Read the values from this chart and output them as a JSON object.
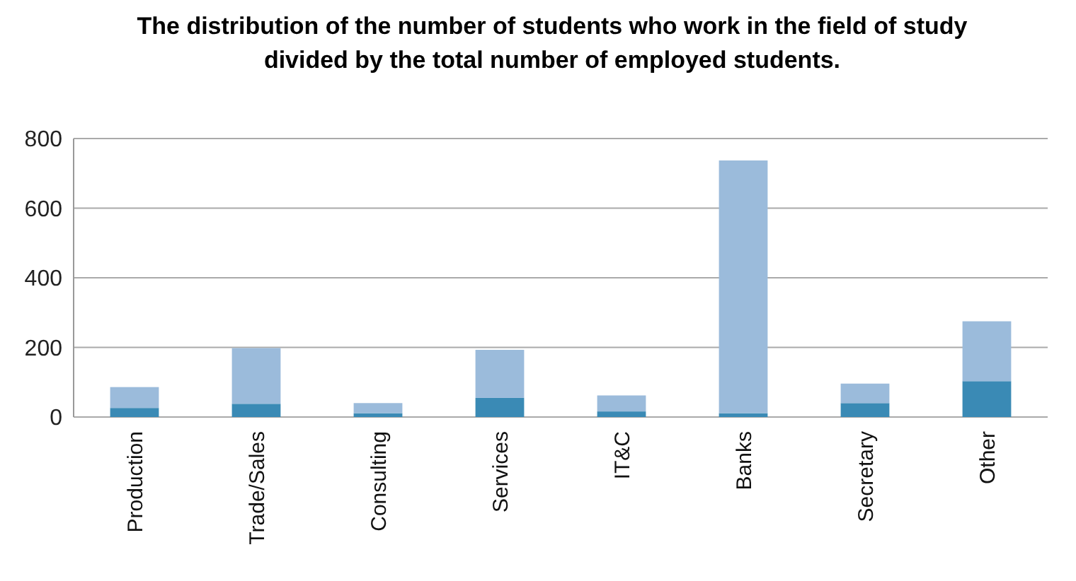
{
  "chart_data": {
    "type": "bar",
    "title": "The distribution of the number of students who work in the field of study divided by the total number of employed students.",
    "categories": [
      "Production",
      "Trade/Sales",
      "Consulting",
      "Services",
      "IT&C",
      "Banks",
      "Secretary",
      "Other"
    ],
    "stacked": true,
    "series": [
      {
        "color": "#3a8ab5",
        "values": [
          26,
          38,
          11,
          55,
          16,
          11,
          40,
          103
        ]
      },
      {
        "color": "#9bbbdb",
        "values": [
          60,
          160,
          29,
          138,
          46,
          726,
          56,
          172
        ]
      }
    ],
    "ylim": [
      0,
      800
    ],
    "yticks": [
      0,
      200,
      400,
      600,
      800
    ],
    "grid": "y"
  }
}
